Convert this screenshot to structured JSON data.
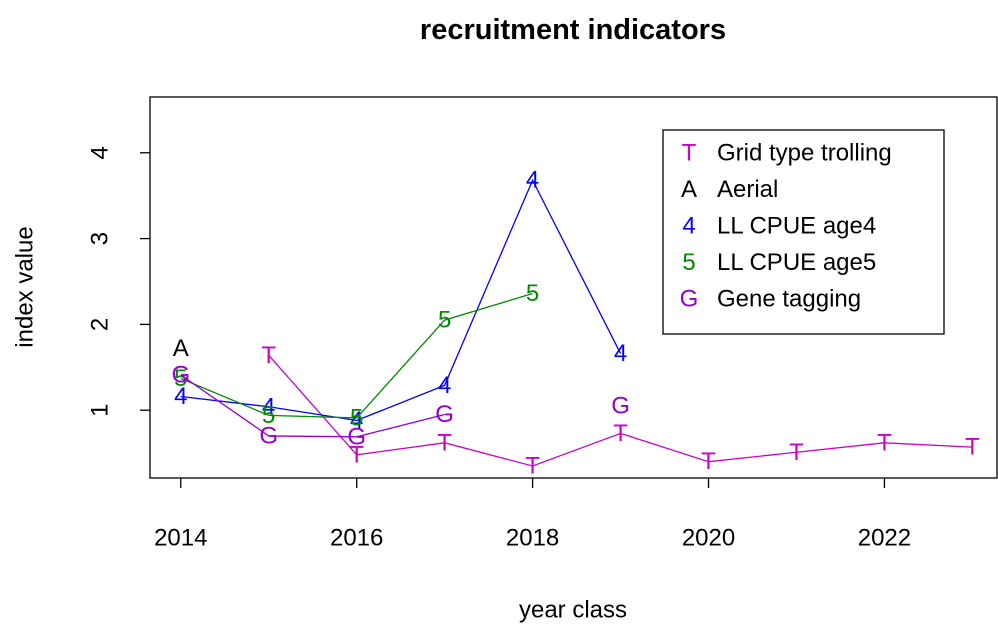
{
  "chart_data": {
    "type": "line",
    "title": "recruitment indicators",
    "x_label": "year class",
    "y_label": "index value",
    "x": [
      2014,
      2015,
      2016,
      2017,
      2018,
      2019,
      2020,
      2021,
      2022,
      2023
    ],
    "series": [
      {
        "name": "Grid type trolling",
        "symbol": "T",
        "color": "#CD00CD",
        "values": [
          null,
          1.64,
          0.48,
          0.62,
          0.35,
          0.73,
          0.4,
          0.51,
          0.62,
          0.57
        ]
      },
      {
        "name": "Aerial",
        "symbol": "A",
        "color": "#000000",
        "values": [
          1.72,
          null,
          null,
          null,
          null,
          null,
          null,
          null,
          null,
          null
        ]
      },
      {
        "name": "LL CPUE age4",
        "symbol": "4",
        "color": "#0000FF",
        "values": [
          1.16,
          1.04,
          0.88,
          1.29,
          3.68,
          1.66,
          null,
          null,
          null,
          null
        ]
      },
      {
        "name": "LL CPUE age5",
        "symbol": "5",
        "color": "#008B00",
        "values": [
          1.37,
          0.94,
          0.91,
          2.05,
          2.36,
          null,
          null,
          null,
          null,
          null
        ]
      },
      {
        "name": "Gene tagging",
        "symbol": "G",
        "color": "#9400D3",
        "values": [
          1.41,
          0.7,
          0.69,
          0.95,
          null,
          1.05,
          null,
          null,
          null,
          null
        ]
      }
    ],
    "xlim": [
      2013.65,
      2023.28
    ],
    "ylim": [
      0.21,
      4.65
    ],
    "xticks": [
      2014,
      2016,
      2018,
      2020,
      2022
    ],
    "yticks": [
      1,
      2,
      3,
      4
    ],
    "legend": "topright"
  }
}
